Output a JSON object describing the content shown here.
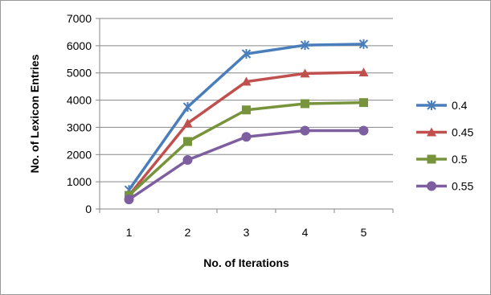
{
  "chart_data": {
    "type": "line",
    "title": "",
    "xlabel": "No. of Iterations",
    "ylabel": "No. of Lexicon Entries",
    "x": [
      1,
      2,
      3,
      4,
      5
    ],
    "ylim": [
      0,
      7000
    ],
    "yticks": [
      0,
      1000,
      2000,
      3000,
      4000,
      5000,
      6000,
      7000
    ],
    "grid": "horizontal",
    "legend_position": "right",
    "series": [
      {
        "name": "0.4",
        "color": "#4a7ebb",
        "marker": "star",
        "values": [
          700,
          3750,
          5700,
          6020,
          6060
        ]
      },
      {
        "name": "0.45",
        "color": "#c0504d",
        "marker": "triangle",
        "values": [
          500,
          3150,
          4680,
          4980,
          5020
        ]
      },
      {
        "name": "0.5",
        "color": "#77933c",
        "marker": "square",
        "values": [
          500,
          2480,
          3640,
          3870,
          3910
        ]
      },
      {
        "name": "0.55",
        "color": "#7d5fa0",
        "marker": "circle",
        "values": [
          350,
          1800,
          2650,
          2880,
          2880
        ]
      }
    ]
  }
}
